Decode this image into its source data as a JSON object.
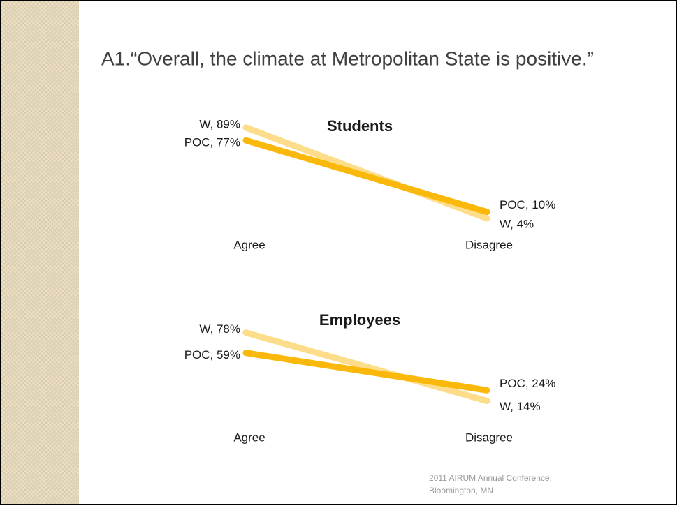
{
  "title": "A1.“Overall, the climate at Metropolitan State is positive.”",
  "footer": [
    "2011 AIRUM Annual Conference,",
    "Bloomington, MN"
  ],
  "chart_data": [
    {
      "type": "line",
      "title": "Students",
      "categories": [
        "Agree",
        "Disagree"
      ],
      "ylim": [
        0,
        100
      ],
      "series": [
        {
          "name": "W",
          "color": "#fddd8a",
          "values": [
            89,
            4
          ],
          "value_labels": [
            "W, 89%",
            "W, 4%"
          ]
        },
        {
          "name": "POC",
          "color": "#fab90a",
          "values": [
            77,
            10
          ],
          "value_labels": [
            "POC, 77%",
            "POC, 10%"
          ]
        }
      ]
    },
    {
      "type": "line",
      "title": "Employees",
      "categories": [
        "Agree",
        "Disagree"
      ],
      "ylim": [
        0,
        100
      ],
      "series": [
        {
          "name": "W",
          "color": "#fddd8a",
          "values": [
            78,
            14
          ],
          "value_labels": [
            "W, 78%",
            "W, 14%"
          ]
        },
        {
          "name": "POC",
          "color": "#fab90a",
          "values": [
            59,
            24
          ],
          "value_labels": [
            "POC, 59%",
            "POC, 24%"
          ]
        }
      ]
    }
  ]
}
